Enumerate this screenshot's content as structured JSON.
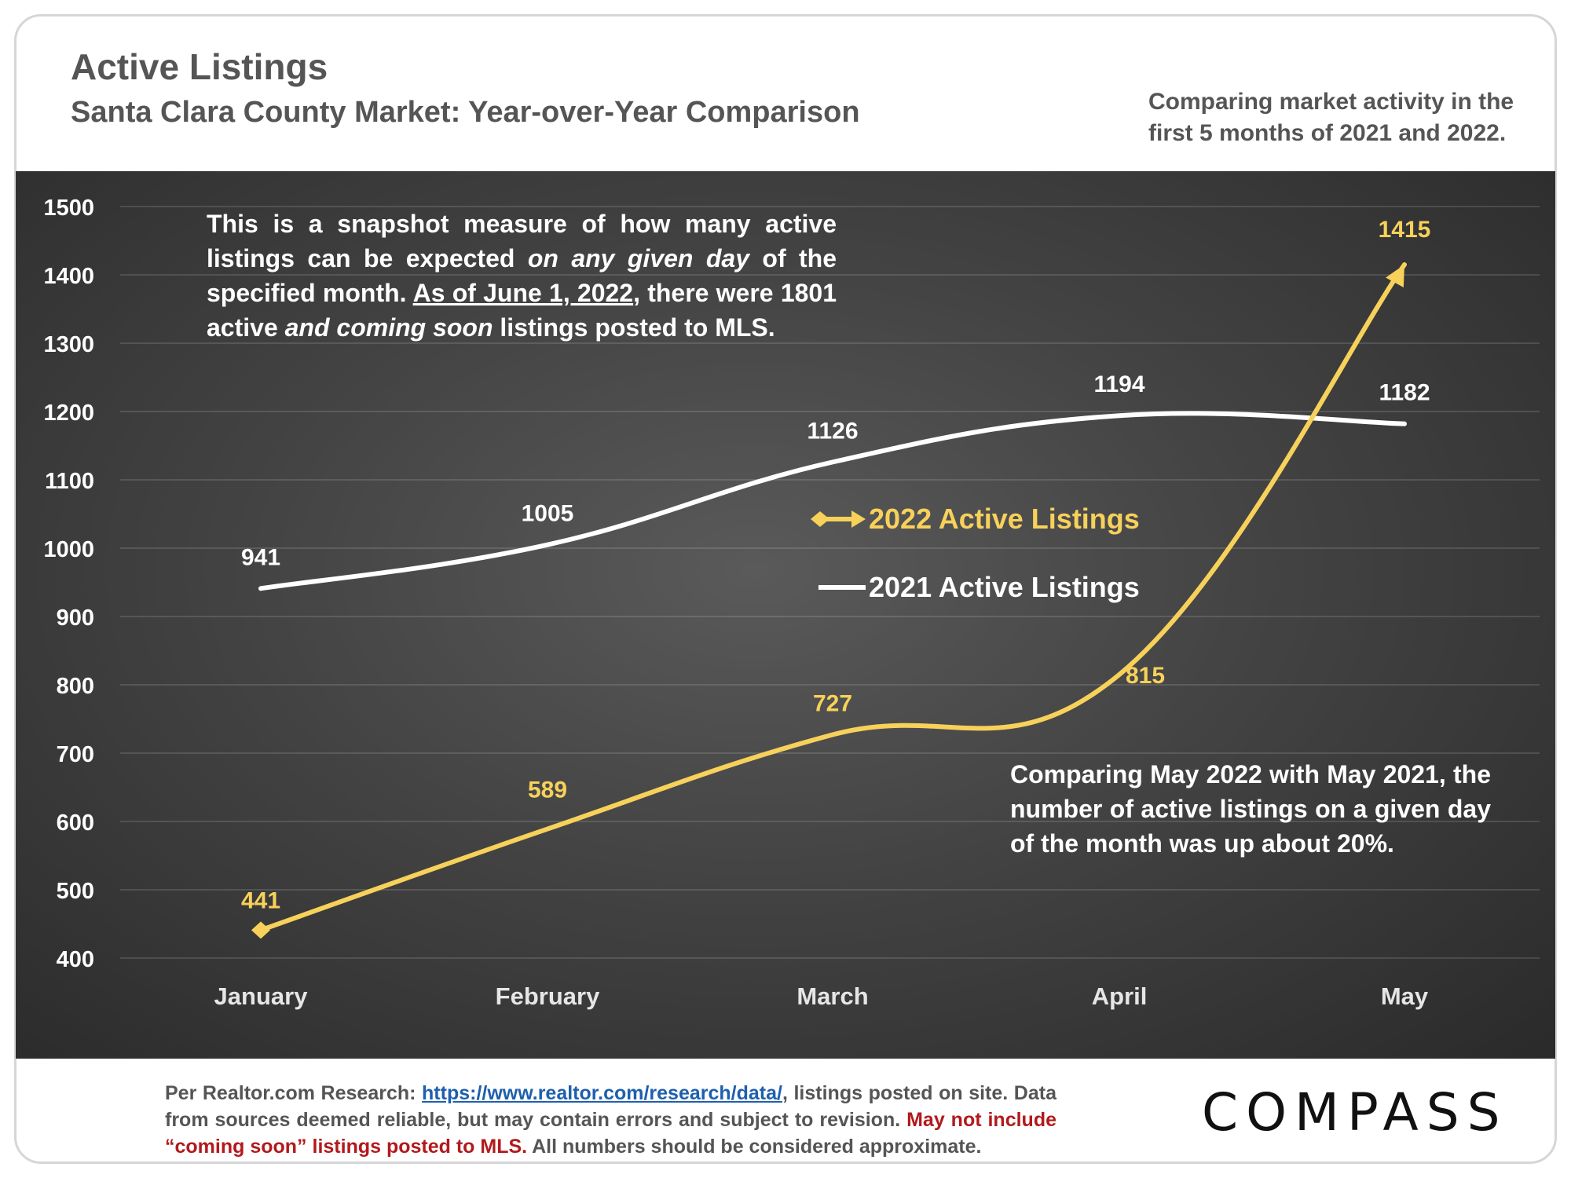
{
  "header": {
    "title": "Active Listings",
    "subtitle": "Santa Clara County Market: Year-over-Year Comparison",
    "note": "Comparing market activity in the first 5 months of 2021 and 2022."
  },
  "annotations": {
    "top_a": "This is a snapshot measure of how many active listings can be expected ",
    "top_b": "on any given day",
    "top_c": " of the specified month. ",
    "top_d": "As of June 1, 2022",
    "top_e": ", there were 1801 active ",
    "top_f": "and coming soon",
    "top_g": " listings posted to MLS.",
    "bottom": "Comparing May 2022 with May 2021, the number of active listings on a given day of the month was up about 20%."
  },
  "footer": {
    "prefix": "Per Realtor.com Research: ",
    "link": "https://www.realtor.com/research/data/",
    "after_link": ", listings posted on site. Data from sources deemed reliable, but may contain errors and subject to revision. ",
    "warning": "May not include “coming soon” listings posted to MLS.",
    "suffix": " All numbers should be considered approximate."
  },
  "logo": "COMPASS",
  "colors": {
    "series_2022": "#f7d15a",
    "series_2021": "#ffffff",
    "text_gray": "#555555",
    "link": "#1f5fae",
    "warning": "#b3191c"
  },
  "chart_data": {
    "type": "line",
    "categories": [
      "January",
      "February",
      "March",
      "April",
      "May"
    ],
    "series": [
      {
        "name": "2022 Active Listings",
        "values": [
          441,
          589,
          727,
          815,
          1415
        ],
        "color": "#f7d15a",
        "marker": "diamond-arrow"
      },
      {
        "name": "2021 Active Listings",
        "values": [
          941,
          1005,
          1126,
          1194,
          1182
        ],
        "color": "#ffffff",
        "marker": "none"
      }
    ],
    "yticks": [
      400,
      500,
      600,
      700,
      800,
      900,
      1000,
      1100,
      1200,
      1300,
      1400,
      1500
    ],
    "ylim": [
      400,
      1500
    ],
    "grid": true,
    "legend_position": "center"
  }
}
